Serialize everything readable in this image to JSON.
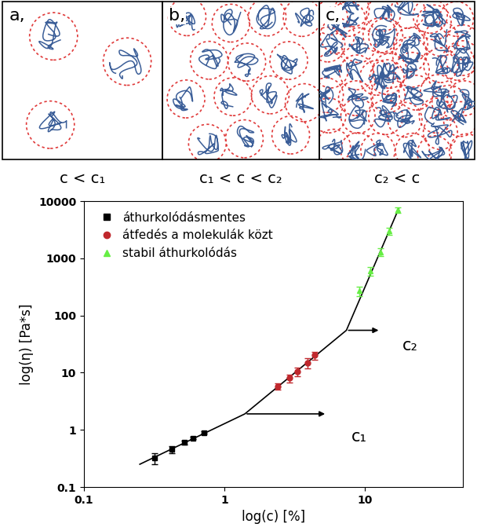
{
  "panels": [
    {
      "label": "a,",
      "caption": "c < c₁"
    },
    {
      "label": "b,",
      "caption": "c₁ < c < c₂"
    },
    {
      "label": "c,",
      "caption": "c₂ < c"
    }
  ],
  "chart_data": {
    "type": "scatter",
    "x_label": "log(c) [%]",
    "y_label": "log(η) [Pa*s]",
    "log": true,
    "xlim": [
      0.1,
      50
    ],
    "ylim": [
      0.1,
      10000
    ],
    "xticks": [
      0.1,
      1,
      10
    ],
    "yticks": [
      0.1,
      1,
      10,
      100,
      1000,
      10000
    ],
    "legend": "upper left",
    "series": [
      {
        "name": "áthurkolódásmentes",
        "color": "#000000",
        "marker": "square",
        "x": [
          0.32,
          0.42,
          0.52,
          0.6,
          0.72
        ],
        "values": [
          0.32,
          0.45,
          0.6,
          0.72,
          0.9
        ],
        "errors": [
          0.07,
          0.06,
          0.04,
          0.04,
          0.04
        ]
      },
      {
        "name": "átfedés a molekulák közt",
        "color": "#c0282d",
        "marker": "circle",
        "x": [
          2.4,
          2.9,
          3.3,
          3.9,
          4.4
        ],
        "values": [
          5.8,
          8,
          10.5,
          15,
          20
        ],
        "errors": [
          0.8,
          1.2,
          1.8,
          3,
          3
        ]
      },
      {
        "name": "stabil áthurkolódás",
        "color": "#66ee44",
        "marker": "triangle",
        "x": [
          9.2,
          11,
          13,
          15,
          17.2
        ],
        "values": [
          270,
          600,
          1300,
          3000,
          7000
        ],
        "errors": [
          50,
          100,
          200,
          400,
          800
        ]
      }
    ],
    "fit_line": {
      "color": "#000000",
      "x": [
        0.25,
        1.4,
        7.4,
        17.5
      ],
      "values": [
        0.25,
        1.9,
        55,
        7500
      ]
    },
    "annotations": [
      {
        "text": "c₁",
        "x": 8,
        "y": 0.75,
        "arrow_from": [
          1.4,
          1.9
        ],
        "arrow_to": [
          5.4,
          1.9
        ]
      },
      {
        "text": "c₂",
        "x": 18.5,
        "y": 30,
        "arrow_from": [
          7.4,
          55
        ],
        "arrow_to": [
          13,
          55
        ]
      }
    ]
  }
}
